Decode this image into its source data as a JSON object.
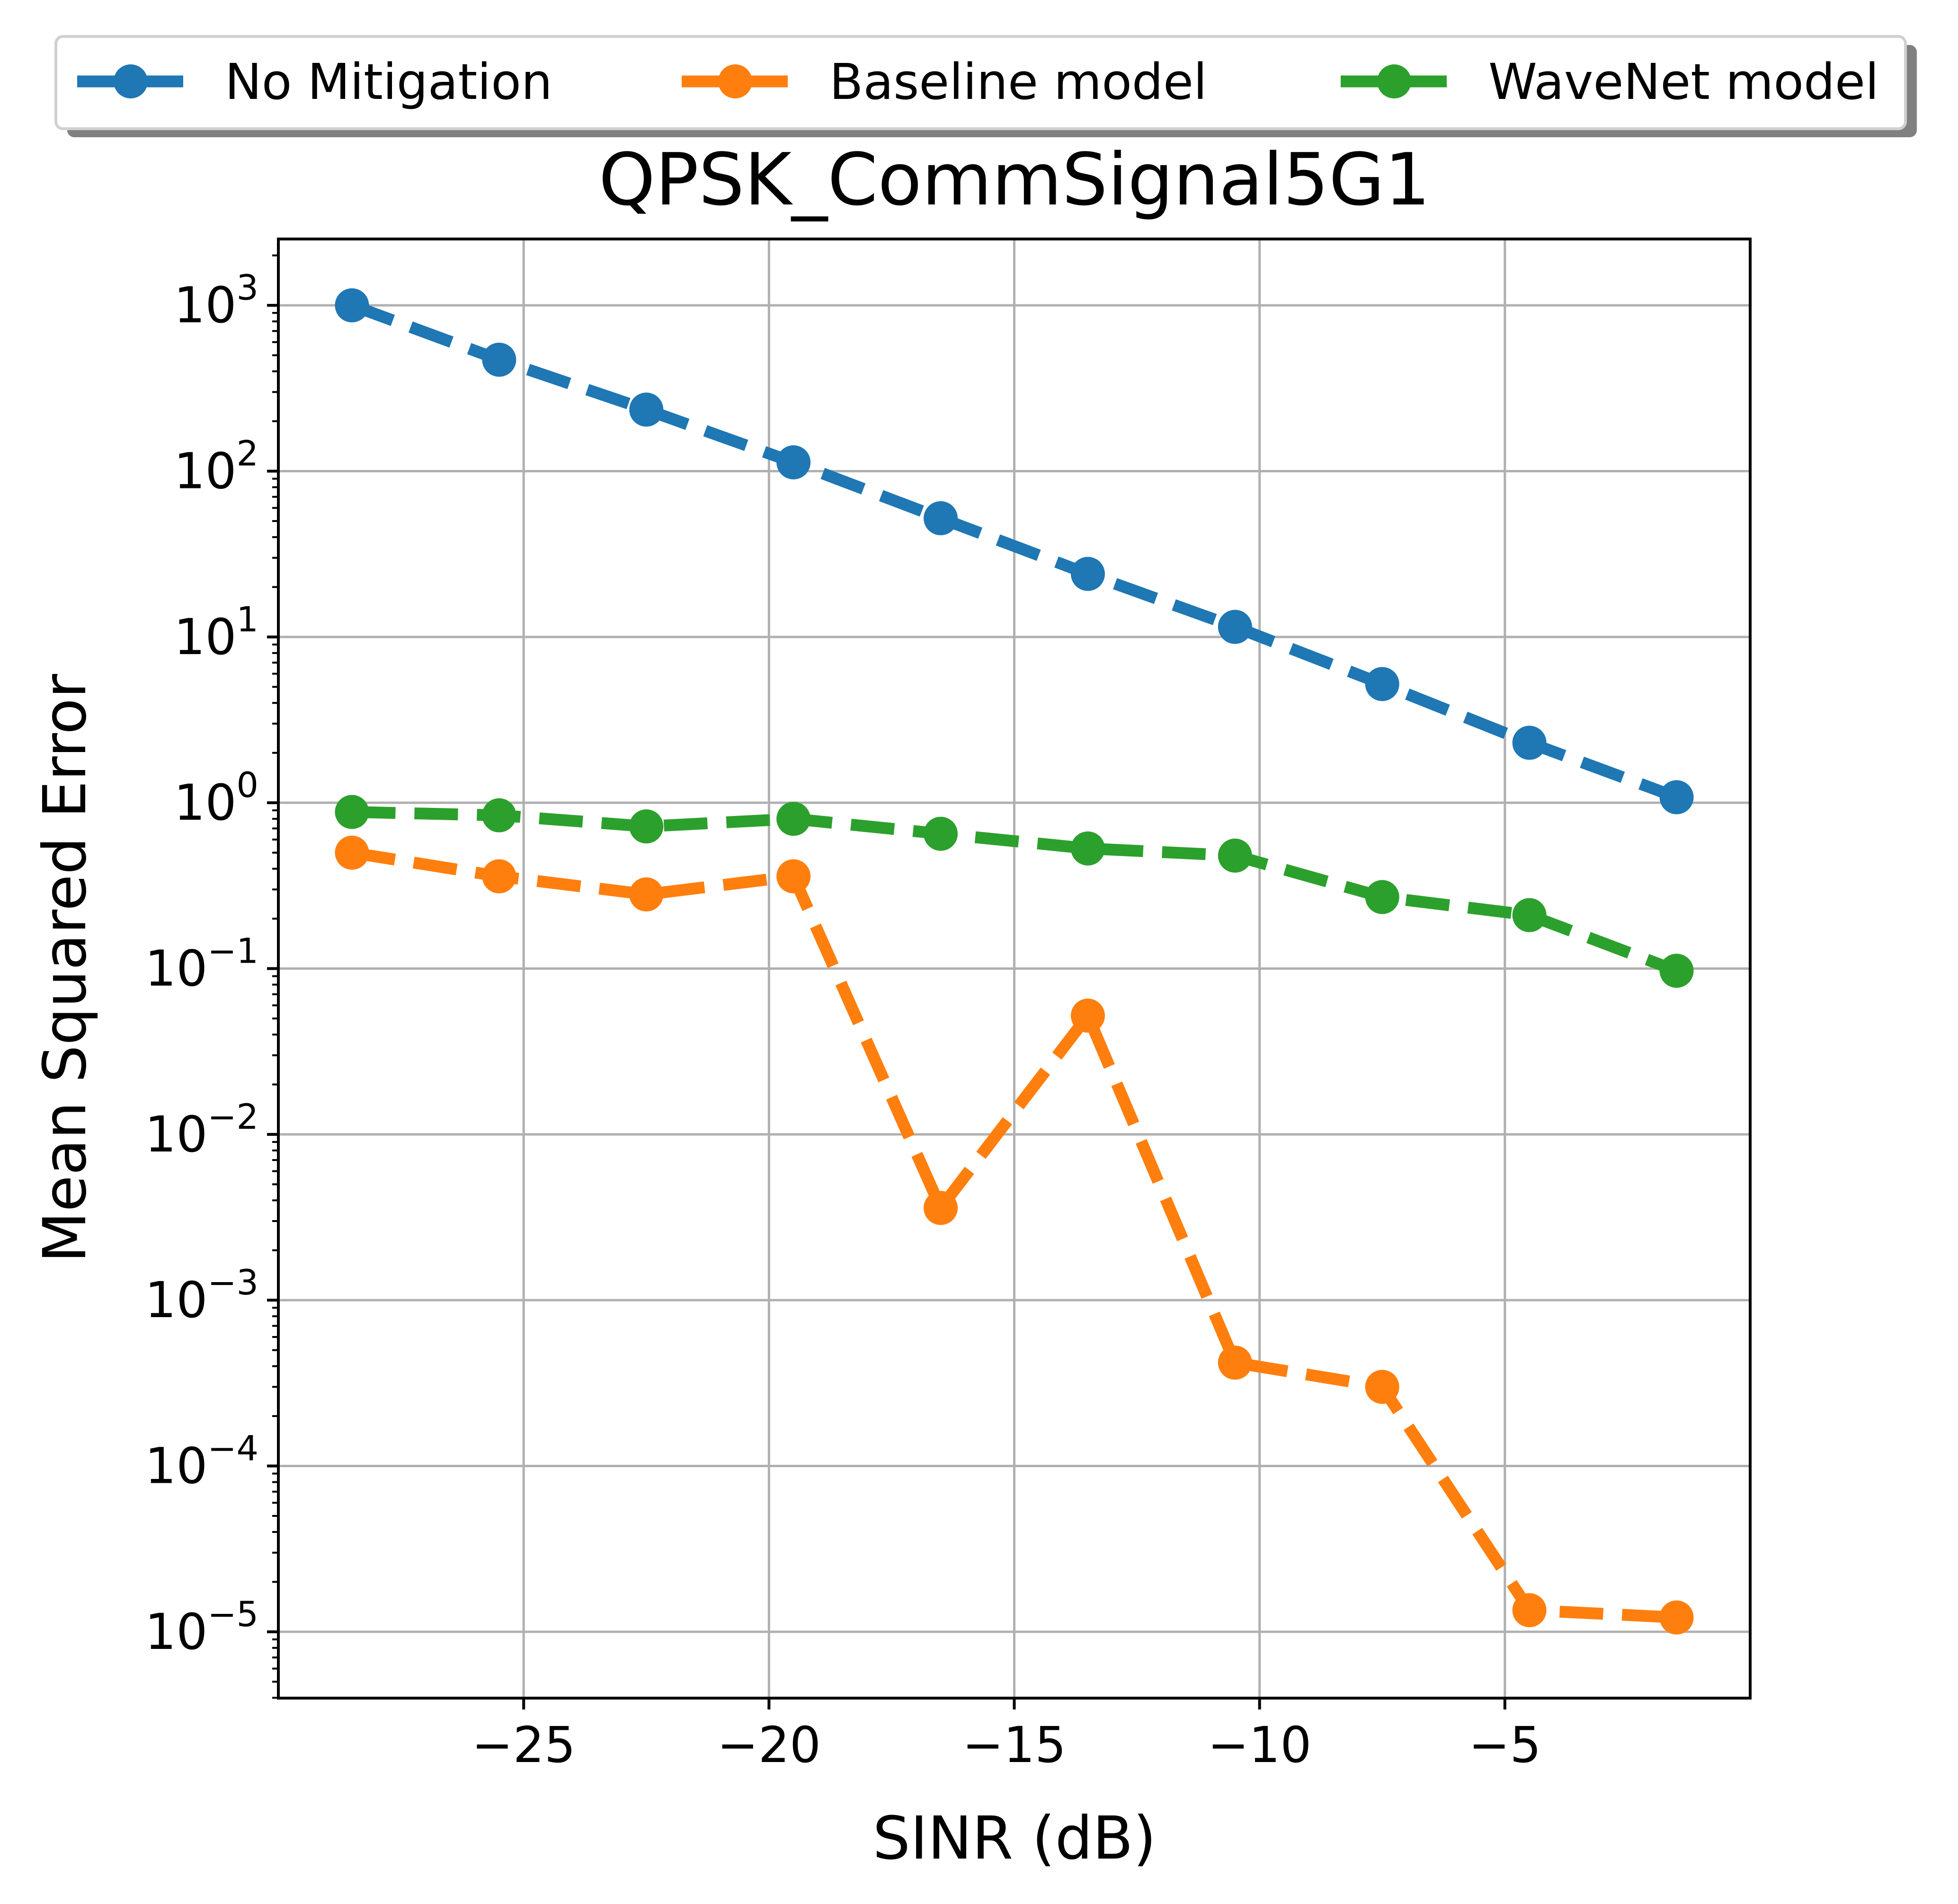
{
  "chart_data": {
    "type": "line",
    "title": "QPSK_CommSignal5G1",
    "xlabel": "SINR (dB)",
    "ylabel": "Mean Squared Error",
    "yscale": "log",
    "xlim": [
      -30,
      0
    ],
    "ylim_log10": [
      -5.4,
      3.4
    ],
    "xticks": [
      -25,
      -20,
      -15,
      -10,
      -5
    ],
    "xtick_labels": [
      "−25",
      "−20",
      "−15",
      "−10",
      "−5"
    ],
    "yticks_exp": [
      -5,
      -4,
      -3,
      -2,
      -1,
      0,
      1,
      2,
      3
    ],
    "ytick_labels": [
      {
        "base": "10",
        "exp": "−5"
      },
      {
        "base": "10",
        "exp": "−4"
      },
      {
        "base": "10",
        "exp": "−3"
      },
      {
        "base": "10",
        "exp": "−2"
      },
      {
        "base": "10",
        "exp": "−1"
      },
      {
        "base": "10",
        "exp": "0"
      },
      {
        "base": "10",
        "exp": "1"
      },
      {
        "base": "10",
        "exp": "2"
      },
      {
        "base": "10",
        "exp": "3"
      }
    ],
    "grid": true,
    "legend_position": "top, above title",
    "x": [
      -28.5,
      -25.5,
      -22.5,
      -19.5,
      -16.5,
      -13.5,
      -10.5,
      -7.5,
      -4.5,
      -1.5
    ],
    "series": [
      {
        "name": "No Mitigation",
        "color": "#1f77b4",
        "values": [
          1000,
          470,
          235,
          113,
          52,
          24,
          11.5,
          5.2,
          2.3,
          1.08
        ]
      },
      {
        "name": "Baseline model",
        "color": "#ff7f0e",
        "values": [
          0.5,
          0.36,
          0.28,
          0.36,
          0.0036,
          0.052,
          0.00042,
          0.0003,
          1.35e-05,
          1.22e-05
        ]
      },
      {
        "name": "WaveNet model",
        "color": "#2ca02c",
        "values": [
          0.88,
          0.84,
          0.72,
          0.8,
          0.65,
          0.53,
          0.48,
          0.27,
          0.21,
          0.097
        ]
      }
    ]
  }
}
